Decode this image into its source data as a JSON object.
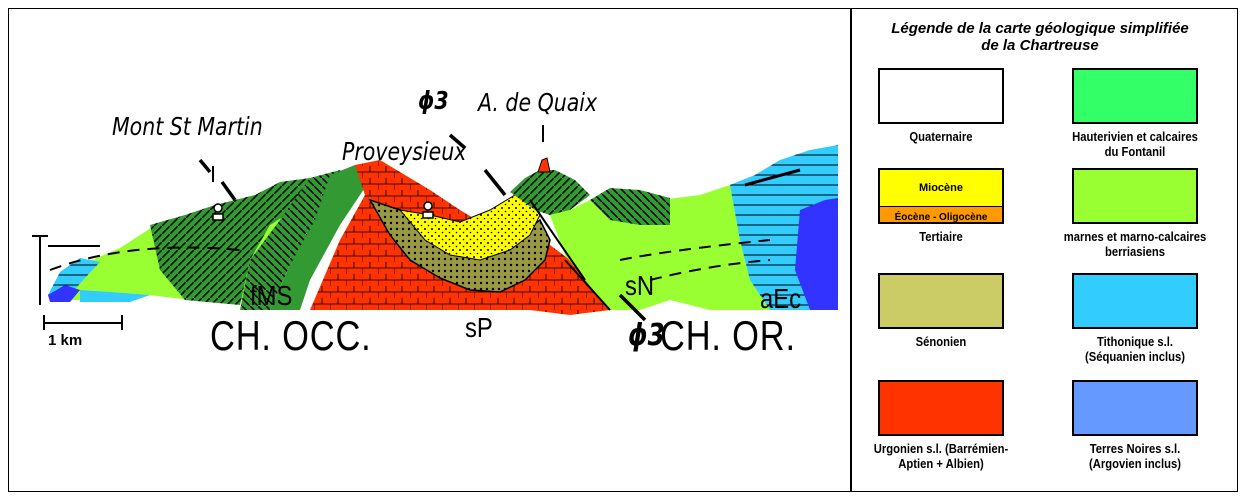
{
  "section": {
    "places": {
      "mont_st_martin": "Mont St Martin",
      "proveysieux": "Proveysieux",
      "phi3_top": "ϕ3",
      "a_de_quaix": "A. de Quaix",
      "phi3_bottom": "ϕ3"
    },
    "units": {
      "fms": "fMS",
      "sp": "sP",
      "sn": "sN",
      "aec": "aEc"
    },
    "structures": {
      "ch_occ": "CH. OCC.",
      "ch_or": "CH. OR."
    },
    "scale_label": "1 km"
  },
  "legend": {
    "title_line1": "Légende de la carte géologique simplifiée",
    "title_line2": "de la Chartreuse",
    "items": [
      {
        "label": "Quaternaire",
        "color": "#ffffff"
      },
      {
        "label": "Hauterivien et calcaires du Fontanil",
        "color": "#33ff66"
      },
      {
        "label": "Tertiaire",
        "color": "#ffff00",
        "sub_top": "Miocène",
        "sub_bottom": "Éocène - Oligocène",
        "sub_bottom_color": "#ff9900"
      },
      {
        "label": "marnes et marno-calcaires berriasiens",
        "color": "#99ff33"
      },
      {
        "label": "Sénonien",
        "color": "#cccc66"
      },
      {
        "label": "Tithonique s.l. (Séquanien inclus)",
        "color": "#33ccff"
      },
      {
        "label": "Urgonien s.l. (Barrémien-Aptien + Albien)",
        "color": "#ff3300"
      },
      {
        "label": "Terres Noires s.l. (Argovien inclus)",
        "color": "#6699ff"
      }
    ]
  }
}
